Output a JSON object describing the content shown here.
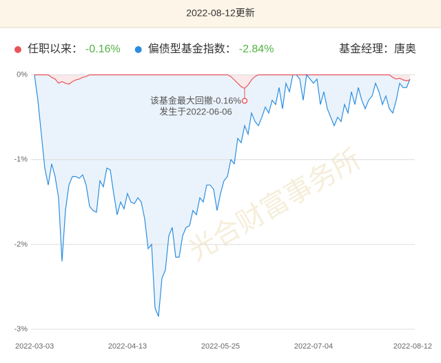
{
  "chart_data": {
    "type": "line",
    "title": "2022-08-12更新",
    "manager": "基金经理：唐奥",
    "watermark": "光合财富事务所",
    "annotation": [
      "该基金最大回撤-0.16%",
      "发生于2022-06-06"
    ],
    "annotation_point": {
      "series": 0,
      "index": 61
    },
    "categories": [
      "2022-03-03",
      null,
      null,
      null,
      null,
      null,
      null,
      null,
      null,
      null,
      null,
      null,
      null,
      null,
      null,
      null,
      null,
      null,
      null,
      null,
      null,
      null,
      null,
      null,
      null,
      null,
      null,
      "2022-04-13",
      null,
      null,
      null,
      null,
      null,
      null,
      null,
      null,
      null,
      null,
      null,
      null,
      null,
      null,
      null,
      null,
      null,
      null,
      null,
      null,
      null,
      null,
      null,
      null,
      null,
      null,
      "2022-05-25",
      null,
      null,
      null,
      null,
      null,
      null,
      null,
      null,
      null,
      null,
      null,
      null,
      null,
      null,
      null,
      null,
      null,
      null,
      null,
      null,
      null,
      null,
      null,
      null,
      null,
      null,
      "2022-07-04",
      null,
      null,
      null,
      null,
      null,
      null,
      null,
      null,
      null,
      null,
      null,
      null,
      null,
      null,
      null,
      null,
      null,
      null,
      null,
      null,
      null,
      null,
      null,
      null,
      null,
      null,
      null,
      "2022-08-12"
    ],
    "series": [
      {
        "name": "任职以来：",
        "summary": "-0.16%",
        "color": "#e8545a",
        "fill": "#fbe9ea",
        "values": [
          0,
          0,
          0,
          0,
          0,
          -0.03,
          -0.05,
          -0.1,
          -0.08,
          -0.1,
          -0.11,
          -0.08,
          -0.06,
          -0.05,
          -0.03,
          -0.02,
          0,
          0,
          0,
          0,
          0,
          0,
          0,
          0,
          0,
          0,
          0,
          0,
          0,
          0,
          0,
          0,
          0,
          0,
          0,
          0,
          0,
          0,
          0,
          0,
          0,
          0,
          0,
          0,
          0,
          0,
          0,
          0,
          0,
          0,
          0,
          0,
          0,
          0,
          0,
          0,
          0,
          -0.02,
          -0.06,
          -0.1,
          -0.14,
          -0.16,
          -0.12,
          -0.06,
          -0.02,
          0,
          0,
          0,
          0,
          0,
          0,
          0,
          0,
          0,
          0,
          0,
          0,
          0,
          0,
          0,
          0,
          0,
          0,
          0,
          0,
          0,
          0,
          0,
          0,
          0,
          0,
          0,
          0,
          0,
          0,
          0,
          0,
          0,
          0,
          0,
          0,
          0,
          0,
          0,
          -0.03,
          -0.05,
          -0.04,
          -0.06,
          -0.07,
          -0.06
        ]
      },
      {
        "name": "偏债型基金指数：",
        "summary": "-2.84%",
        "color": "#2a8de0",
        "fill": "#eaf3fb",
        "values": [
          0,
          -0.3,
          -0.7,
          -1.1,
          -1.3,
          -1.05,
          -1.2,
          -1.45,
          -2.2,
          -1.6,
          -1.3,
          -1.2,
          -1.2,
          -1.22,
          -1.18,
          -1.3,
          -1.55,
          -1.6,
          -1.62,
          -1.25,
          -1.32,
          -1.1,
          -1.12,
          -1.4,
          -1.65,
          -1.5,
          -1.58,
          -1.4,
          -1.5,
          -1.52,
          -1.45,
          -1.5,
          -1.7,
          -2.05,
          -2.0,
          -2.75,
          -2.85,
          -2.4,
          -2.3,
          -1.9,
          -1.8,
          -2.15,
          -2.15,
          -1.9,
          -1.8,
          -1.78,
          -1.6,
          -1.65,
          -1.45,
          -1.5,
          -1.3,
          -1.3,
          -1.35,
          -1.6,
          -1.4,
          -1.25,
          -1.2,
          -1.0,
          -1.05,
          -0.75,
          -0.8,
          -0.6,
          -0.7,
          -0.45,
          -0.55,
          -0.6,
          -0.5,
          -0.38,
          -0.45,
          -0.3,
          -0.35,
          -0.15,
          -0.4,
          -0.1,
          -0.2,
          0,
          0,
          -0.05,
          -0.3,
          0,
          -0.05,
          -0.1,
          -0.05,
          -0.35,
          -0.2,
          -0.4,
          -0.5,
          -0.6,
          -0.5,
          -0.55,
          -0.35,
          -0.45,
          -0.2,
          -0.35,
          -0.15,
          -0.3,
          -0.4,
          -0.3,
          -0.25,
          -0.1,
          -0.2,
          -0.35,
          -0.25,
          -0.4,
          -0.45,
          -0.3,
          -0.1,
          -0.15,
          -0.15,
          -0.05
        ]
      }
    ],
    "summary_color": "#52b244",
    "ylim": [
      -3,
      0.07
    ],
    "yticks": [
      {
        "value": 0,
        "label": "0%"
      },
      {
        "value": -1,
        "label": "-1%"
      },
      {
        "value": -2,
        "label": "-2%"
      },
      {
        "value": -3,
        "label": "-3%"
      }
    ],
    "grid": true
  }
}
